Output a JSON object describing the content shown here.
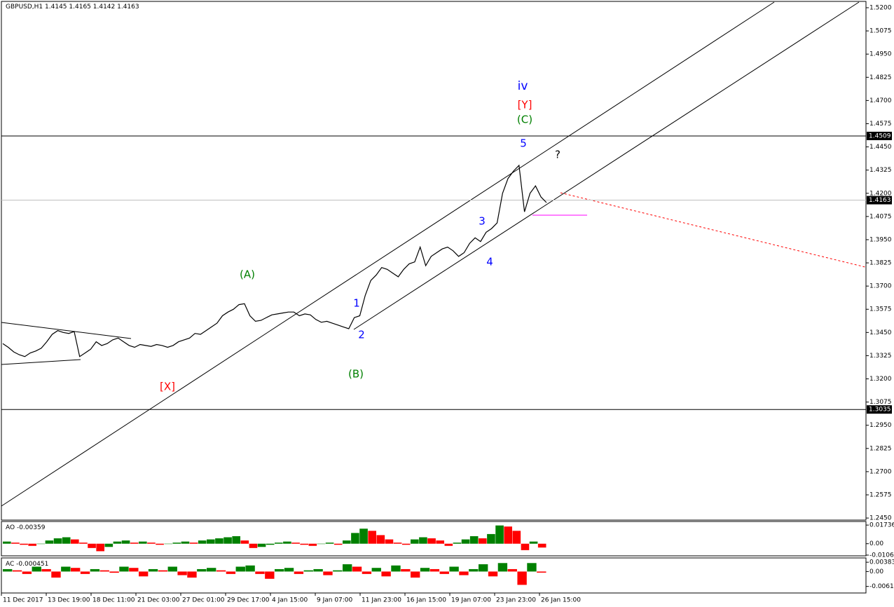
{
  "chart_data": {
    "type": "line",
    "title": "GBPUSD,H1",
    "quote": "1.4145 1.4165 1.4142 1.4163",
    "color": "#000000",
    "time_labels": [
      "11 Dec 2017",
      "13 Dec 19:00",
      "18 Dec 11:00",
      "21 Dec 03:00",
      "27 Dec 01:00",
      "29 Dec 17:00",
      "4 Jan 15:00",
      "9 Jan 07:00",
      "11 Jan 23:00",
      "16 Jan 15:00",
      "19 Jan 07:00",
      "23 Jan 23:00",
      "26 Jan 15:00"
    ],
    "values": [
      1.339,
      1.337,
      1.3345,
      1.333,
      1.332,
      1.334,
      1.335,
      1.3365,
      1.34,
      1.344,
      1.346,
      1.345,
      1.3445,
      1.3455,
      1.332,
      1.334,
      1.336,
      1.34,
      1.338,
      1.339,
      1.341,
      1.342,
      1.34,
      1.338,
      1.337,
      1.3385,
      1.338,
      1.3375,
      1.3385,
      1.338,
      1.337,
      1.338,
      1.34,
      1.341,
      1.342,
      1.3445,
      1.344,
      1.346,
      1.348,
      1.35,
      1.354,
      1.356,
      1.3575,
      1.36,
      1.3605,
      1.354,
      1.351,
      1.3515,
      1.353,
      1.3545,
      1.355,
      1.3555,
      1.356,
      1.356,
      1.354,
      1.355,
      1.3545,
      1.352,
      1.3505,
      1.351,
      1.35,
      1.349,
      1.348,
      1.347,
      1.353,
      1.354,
      1.365,
      1.373,
      1.376,
      1.38,
      1.379,
      1.377,
      1.375,
      1.379,
      1.382,
      1.383,
      1.391,
      1.381,
      1.386,
      1.388,
      1.39,
      1.391,
      1.389,
      1.386,
      1.388,
      1.393,
      1.396,
      1.394,
      1.399,
      1.401,
      1.404,
      1.42,
      1.428,
      1.432,
      1.435,
      1.41,
      1.42,
      1.424,
      1.418,
      1.415
    ],
    "ylim": [
      1.2439,
      1.5234
    ],
    "yticks": [
      {
        "value": 1.52,
        "label": "1.5200"
      },
      1.5075,
      {
        "value": 1.495,
        "label": "1.4950"
      },
      1.4825,
      {
        "value": 1.47,
        "label": "1.4700"
      },
      1.4575,
      {
        "value": 1.445,
        "label": "1.4450"
      },
      1.4325,
      {
        "value": 1.42,
        "label": "1.4200"
      },
      1.4075,
      {
        "value": 1.395,
        "label": "1.3950"
      },
      1.3825,
      {
        "value": 1.37,
        "label": "1.3700"
      },
      1.3575,
      {
        "value": 1.345,
        "label": "1.3450"
      },
      1.3325,
      {
        "value": 1.32,
        "label": "1.3200"
      },
      1.3075,
      {
        "value": 1.295,
        "label": "1.2950"
      },
      1.2825,
      {
        "value": 1.27,
        "label": "1.2700"
      },
      1.2575,
      {
        "value": 1.245,
        "label": "1.2450"
      }
    ],
    "levels": [
      1.4509,
      1.3035
    ],
    "current": 1.4163,
    "annotations": [
      "iv",
      "[Y]",
      "(C)",
      "5",
      "?",
      "3",
      "4",
      "(A)",
      "1",
      "2",
      "(B)",
      "[X]"
    ],
    "indicators": [
      {
        "type": "bar",
        "name": "AO",
        "current": -0.00359,
        "up_color": "#008000",
        "down_color": "#ff0000",
        "ylim": [
          -0.0113,
          0.0207
        ],
        "yticks": [
          0.01736,
          {
            "value": 0,
            "label": "0.00"
          },
          -0.01063
        ],
        "values": [
          0.002,
          0.001,
          -0.001,
          -0.002,
          0.0,
          0.003,
          0.005,
          0.006,
          0.004,
          0.001,
          -0.004,
          -0.007,
          -0.003,
          0.002,
          0.003,
          0.001,
          0.002,
          0.001,
          -0.001,
          0.0,
          0.001,
          0.002,
          0.001,
          0.003,
          0.004,
          0.005,
          0.006,
          0.007,
          0.003,
          -0.004,
          -0.003,
          -0.001,
          0.001,
          0.002,
          0.001,
          -0.001,
          -0.002,
          0.0,
          0.001,
          -0.001,
          0.003,
          0.01,
          0.014,
          0.012,
          0.008,
          0.004,
          0.001,
          -0.001,
          0.004,
          0.006,
          0.005,
          0.003,
          -0.002,
          0.001,
          0.004,
          0.007,
          0.005,
          0.009,
          0.017,
          0.016,
          0.012,
          -0.006,
          0.002,
          -0.00359
        ]
      },
      {
        "type": "bar",
        "name": "AC",
        "current": -0.000451,
        "up_color": "#008000",
        "down_color": "#ff0000",
        "ylim": [
          -0.00885,
          0.00561
        ],
        "yticks": [
          0.003836,
          {
            "value": 0,
            "label": "0.00"
          },
          -0.00615
        ],
        "values": [
          0.001,
          0.0005,
          -0.001,
          0.002,
          0.001,
          -0.0025,
          0.002,
          0.0015,
          -0.001,
          0.001,
          0.0005,
          -0.0005,
          0.002,
          0.0015,
          -0.002,
          0.001,
          0.0005,
          0.002,
          -0.0015,
          -0.0025,
          0.001,
          0.0015,
          0.0005,
          -0.001,
          0.002,
          0.0025,
          -0.001,
          -0.003,
          0.001,
          0.0015,
          -0.001,
          0.0005,
          0.001,
          -0.0015,
          0.0005,
          0.003,
          0.002,
          -0.001,
          0.0015,
          -0.002,
          0.0025,
          0.001,
          -0.0025,
          0.0015,
          0.001,
          -0.001,
          0.002,
          -0.0015,
          0.001,
          0.003,
          -0.002,
          0.0035,
          0.001,
          -0.0055,
          0.0035,
          -0.000451
        ]
      }
    ]
  }
}
